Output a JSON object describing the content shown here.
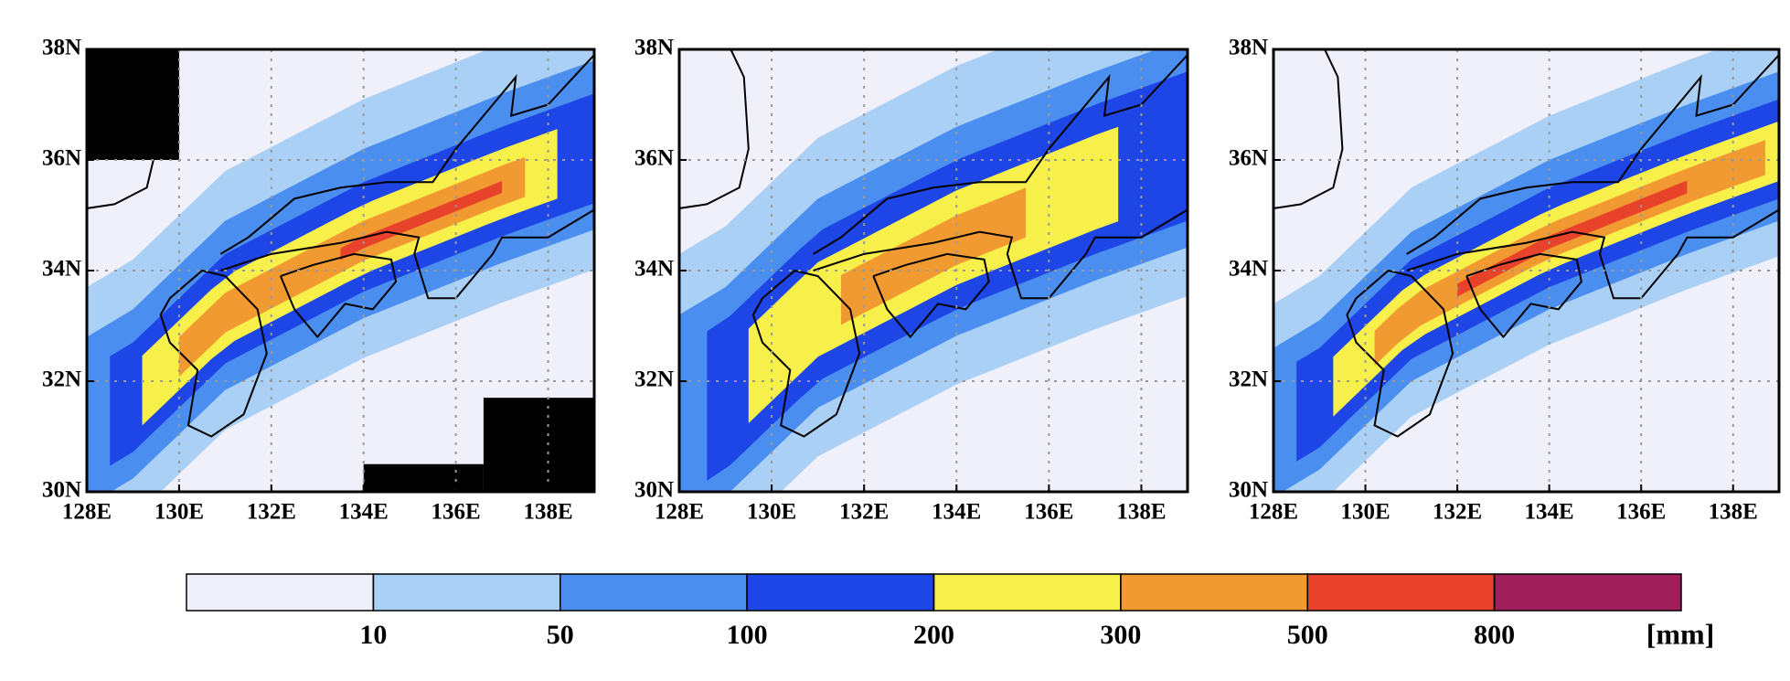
{
  "chart_data": {
    "type": "map",
    "grid": true,
    "panels": [
      {
        "xlim": [
          128,
          139
        ],
        "ylim": [
          30,
          38
        ],
        "xticks": [
          {
            "value": 128,
            "label": "128E"
          },
          {
            "value": 130,
            "label": "130E"
          },
          {
            "value": 132,
            "label": "132E"
          },
          {
            "value": 134,
            "label": "134E"
          },
          {
            "value": 136,
            "label": "136E"
          },
          {
            "value": 138,
            "label": "138E"
          }
        ],
        "yticks": [
          {
            "value": 30,
            "label": "30N"
          },
          {
            "value": 32,
            "label": "32N"
          },
          {
            "value": 34,
            "label": "34N"
          },
          {
            "value": 36,
            "label": "36N"
          },
          {
            "value": 38,
            "label": "38N"
          }
        ]
      },
      {
        "xlim": [
          128,
          139
        ],
        "ylim": [
          30,
          38
        ],
        "xticks": [
          {
            "value": 128,
            "label": "128E"
          },
          {
            "value": 130,
            "label": "130E"
          },
          {
            "value": 132,
            "label": "132E"
          },
          {
            "value": 134,
            "label": "134E"
          },
          {
            "value": 136,
            "label": "136E"
          },
          {
            "value": 138,
            "label": "138E"
          }
        ],
        "yticks": [
          {
            "value": 30,
            "label": "30N"
          },
          {
            "value": 32,
            "label": "32N"
          },
          {
            "value": 34,
            "label": "34N"
          },
          {
            "value": 36,
            "label": "36N"
          },
          {
            "value": 38,
            "label": "38N"
          }
        ]
      },
      {
        "xlim": [
          128,
          139
        ],
        "ylim": [
          30,
          38
        ],
        "xticks": [
          {
            "value": 128,
            "label": "128E"
          },
          {
            "value": 130,
            "label": "130E"
          },
          {
            "value": 132,
            "label": "132E"
          },
          {
            "value": 134,
            "label": "134E"
          },
          {
            "value": 136,
            "label": "136E"
          },
          {
            "value": 138,
            "label": "138E"
          }
        ],
        "yticks": [
          {
            "value": 30,
            "label": "30N"
          },
          {
            "value": 32,
            "label": "32N"
          },
          {
            "value": 34,
            "label": "34N"
          },
          {
            "value": 36,
            "label": "36N"
          },
          {
            "value": 38,
            "label": "38N"
          }
        ]
      }
    ],
    "colorbar": {
      "levels": [
        10,
        50,
        100,
        200,
        300,
        500,
        800
      ],
      "colors": [
        "#f0f0fb",
        "#abd0f6",
        "#4a8ef0",
        "#1e46e6",
        "#f8f04a",
        "#f29a32",
        "#e8432a",
        "#a01e5a"
      ],
      "unit": "[mm]"
    }
  }
}
